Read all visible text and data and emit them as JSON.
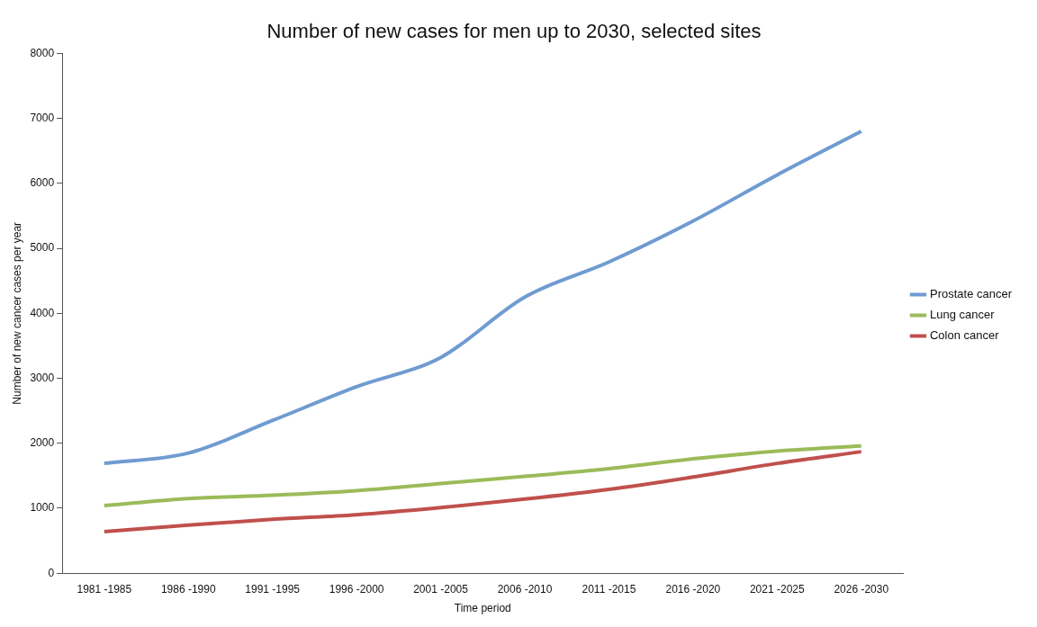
{
  "chart_data": {
    "type": "line",
    "title": "Number of new cases for men up to 2030, selected sites",
    "xlabel": "Time period",
    "ylabel": "Number of new cancer cases per year",
    "categories": [
      "1981 -1985",
      "1986 -1990",
      "1991 -1995",
      "1996 -2000",
      "2001 -2005",
      "2006 -2010",
      "2011 -2015",
      "2016 -2020",
      "2021 -2025",
      "2026 -2030"
    ],
    "series": [
      {
        "name": "Prostate cancer",
        "color": "#6f9bd1",
        "values": [
          1690,
          1850,
          2350,
          2870,
          3320,
          4250,
          4790,
          5420,
          6130,
          6800
        ]
      },
      {
        "name": "Lung cancer",
        "color": "#9bbb59",
        "values": [
          1040,
          1150,
          1200,
          1270,
          1380,
          1490,
          1610,
          1760,
          1880,
          1960
        ]
      },
      {
        "name": "Colon cancer",
        "color": "#c0504d",
        "values": [
          640,
          740,
          830,
          900,
          1010,
          1140,
          1290,
          1480,
          1690,
          1870
        ]
      }
    ],
    "ylim": [
      0,
      8000
    ],
    "yticks": [
      0,
      1000,
      2000,
      3000,
      4000,
      5000,
      6000,
      7000,
      8000
    ],
    "grid": false,
    "legend": "right",
    "marker": "none",
    "line_style": "solid"
  }
}
